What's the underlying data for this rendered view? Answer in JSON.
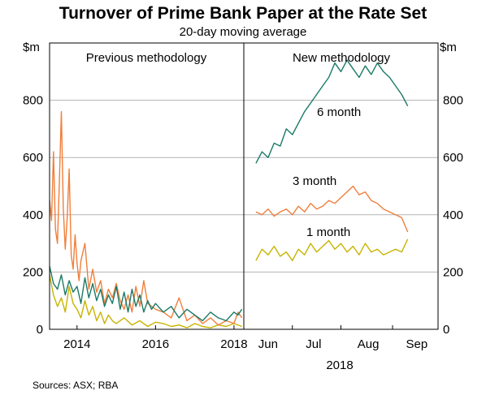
{
  "chart_data": {
    "type": "line",
    "title": "Turnover of Prime Bank Paper at the Rate Set",
    "subtitle": "20-day moving average",
    "ylabel_left": "$m",
    "ylabel_right": "$m",
    "ylim": [
      0,
      1000
    ],
    "yticks": [
      0,
      200,
      400,
      600,
      800
    ],
    "source": "Sources:   ASX; RBA",
    "colors": {
      "one_month": "#c8b400",
      "three_month": "#f07f3c",
      "six_month": "#1a7a66"
    },
    "panels": [
      {
        "title": "Previous methodology",
        "x_ticks": [
          "2014",
          "2016",
          "2018"
        ],
        "series": [
          {
            "key": "one_month",
            "x": [
              2013.3,
              2013.4,
              2013.5,
              2013.6,
              2013.7,
              2013.8,
              2013.9,
              2014.0,
              2014.1,
              2014.2,
              2014.3,
              2014.4,
              2014.5,
              2014.6,
              2014.7,
              2014.8,
              2014.9,
              2015.0,
              2015.2,
              2015.4,
              2015.6,
              2015.8,
              2016.0,
              2016.2,
              2016.4,
              2016.6,
              2016.8,
              2017.0,
              2017.2,
              2017.4,
              2017.6,
              2017.8,
              2018.0,
              2018.2
            ],
            "values": [
              190,
              120,
              80,
              110,
              60,
              150,
              90,
              70,
              40,
              100,
              50,
              80,
              30,
              60,
              20,
              50,
              30,
              20,
              40,
              15,
              30,
              10,
              25,
              20,
              10,
              15,
              5,
              20,
              10,
              5,
              15,
              10,
              20,
              10
            ]
          },
          {
            "key": "three_month",
            "x": [
              2013.3,
              2013.35,
              2013.4,
              2013.45,
              2013.5,
              2013.55,
              2013.6,
              2013.65,
              2013.7,
              2013.75,
              2013.8,
              2013.85,
              2013.9,
              2013.95,
              2014.0,
              2014.05,
              2014.1,
              2014.2,
              2014.3,
              2014.4,
              2014.5,
              2014.6,
              2014.7,
              2014.8,
              2014.9,
              2015.0,
              2015.1,
              2015.2,
              2015.3,
              2015.4,
              2015.5,
              2015.6,
              2015.7,
              2015.8,
              2016.0,
              2016.2,
              2016.4,
              2016.6,
              2016.8,
              2017.0,
              2017.2,
              2017.4,
              2017.6,
              2017.8,
              2018.0,
              2018.1,
              2018.2
            ],
            "values": [
              450,
              380,
              620,
              350,
              300,
              520,
              760,
              420,
              280,
              390,
              560,
              260,
              210,
              330,
              230,
              170,
              240,
              300,
              140,
              210,
              130,
              170,
              90,
              140,
              110,
              160,
              100,
              70,
              120,
              60,
              150,
              80,
              170,
              90,
              70,
              60,
              40,
              110,
              30,
              50,
              20,
              40,
              15,
              30,
              20,
              60,
              40
            ]
          },
          {
            "key": "six_month",
            "x": [
              2013.3,
              2013.4,
              2013.5,
              2013.6,
              2013.7,
              2013.8,
              2013.9,
              2014.0,
              2014.1,
              2014.2,
              2014.3,
              2014.4,
              2014.5,
              2014.6,
              2014.7,
              2014.8,
              2014.9,
              2015.0,
              2015.1,
              2015.2,
              2015.3,
              2015.4,
              2015.5,
              2015.6,
              2015.7,
              2015.8,
              2015.9,
              2016.0,
              2016.2,
              2016.4,
              2016.6,
              2016.8,
              2017.0,
              2017.2,
              2017.4,
              2017.6,
              2017.8,
              2018.0,
              2018.1,
              2018.2
            ],
            "values": [
              220,
              160,
              140,
              190,
              120,
              170,
              130,
              150,
              90,
              180,
              110,
              160,
              100,
              140,
              80,
              120,
              90,
              150,
              70,
              130,
              60,
              140,
              80,
              120,
              60,
              100,
              70,
              90,
              60,
              80,
              40,
              70,
              50,
              30,
              60,
              40,
              30,
              60,
              50,
              70
            ]
          }
        ]
      },
      {
        "title": "New methodology",
        "x_ticks": [
          "Jun",
          "Jul",
          "Aug",
          "Sep"
        ],
        "x_axis_label": "2018",
        "series": [
          {
            "key": "one_month",
            "label": "1 month",
            "x": [
              0.2,
              0.3,
              0.4,
              0.5,
              0.6,
              0.7,
              0.8,
              0.9,
              1.0,
              1.1,
              1.2,
              1.3,
              1.4,
              1.5,
              1.6,
              1.7,
              1.8,
              1.9,
              2.0,
              2.1,
              2.2,
              2.3,
              2.4,
              2.5,
              2.6,
              2.7
            ],
            "values": [
              240,
              280,
              260,
              290,
              255,
              270,
              240,
              280,
              260,
              300,
              270,
              290,
              310,
              280,
              300,
              270,
              290,
              260,
              300,
              270,
              280,
              260,
              270,
              280,
              270,
              315
            ]
          },
          {
            "key": "three_month",
            "label": "3 month",
            "x": [
              0.2,
              0.3,
              0.4,
              0.5,
              0.6,
              0.7,
              0.8,
              0.9,
              1.0,
              1.1,
              1.2,
              1.3,
              1.4,
              1.5,
              1.6,
              1.7,
              1.8,
              1.9,
              2.0,
              2.1,
              2.2,
              2.3,
              2.4,
              2.5,
              2.6,
              2.7
            ],
            "values": [
              410,
              400,
              420,
              395,
              410,
              420,
              400,
              430,
              410,
              440,
              420,
              430,
              450,
              440,
              460,
              480,
              500,
              470,
              480,
              450,
              440,
              420,
              410,
              400,
              390,
              340
            ]
          },
          {
            "key": "six_month",
            "label": "6 month",
            "x": [
              0.2,
              0.3,
              0.4,
              0.5,
              0.6,
              0.7,
              0.8,
              0.9,
              1.0,
              1.1,
              1.2,
              1.3,
              1.4,
              1.5,
              1.6,
              1.7,
              1.8,
              1.9,
              2.0,
              2.1,
              2.2,
              2.3,
              2.4,
              2.5,
              2.6,
              2.7
            ],
            "values": [
              580,
              620,
              600,
              650,
              640,
              700,
              680,
              720,
              760,
              790,
              820,
              850,
              880,
              930,
              900,
              940,
              910,
              880,
              920,
              890,
              930,
              900,
              880,
              850,
              820,
              780
            ]
          }
        ]
      }
    ]
  }
}
